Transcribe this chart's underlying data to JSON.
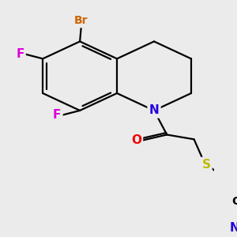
{
  "background_color": "#ebebeb",
  "atom_colors": {
    "N": "#2200dd",
    "O": "#ee0000",
    "S": "#bbbb00",
    "Br": "#cc6600",
    "F": "#dd00dd",
    "C": "#000000",
    "Cn": "#000000"
  },
  "figsize": [
    3.0,
    3.0
  ],
  "dpi": 100,
  "bond_lw": 1.6,
  "bond_color": "#000000"
}
